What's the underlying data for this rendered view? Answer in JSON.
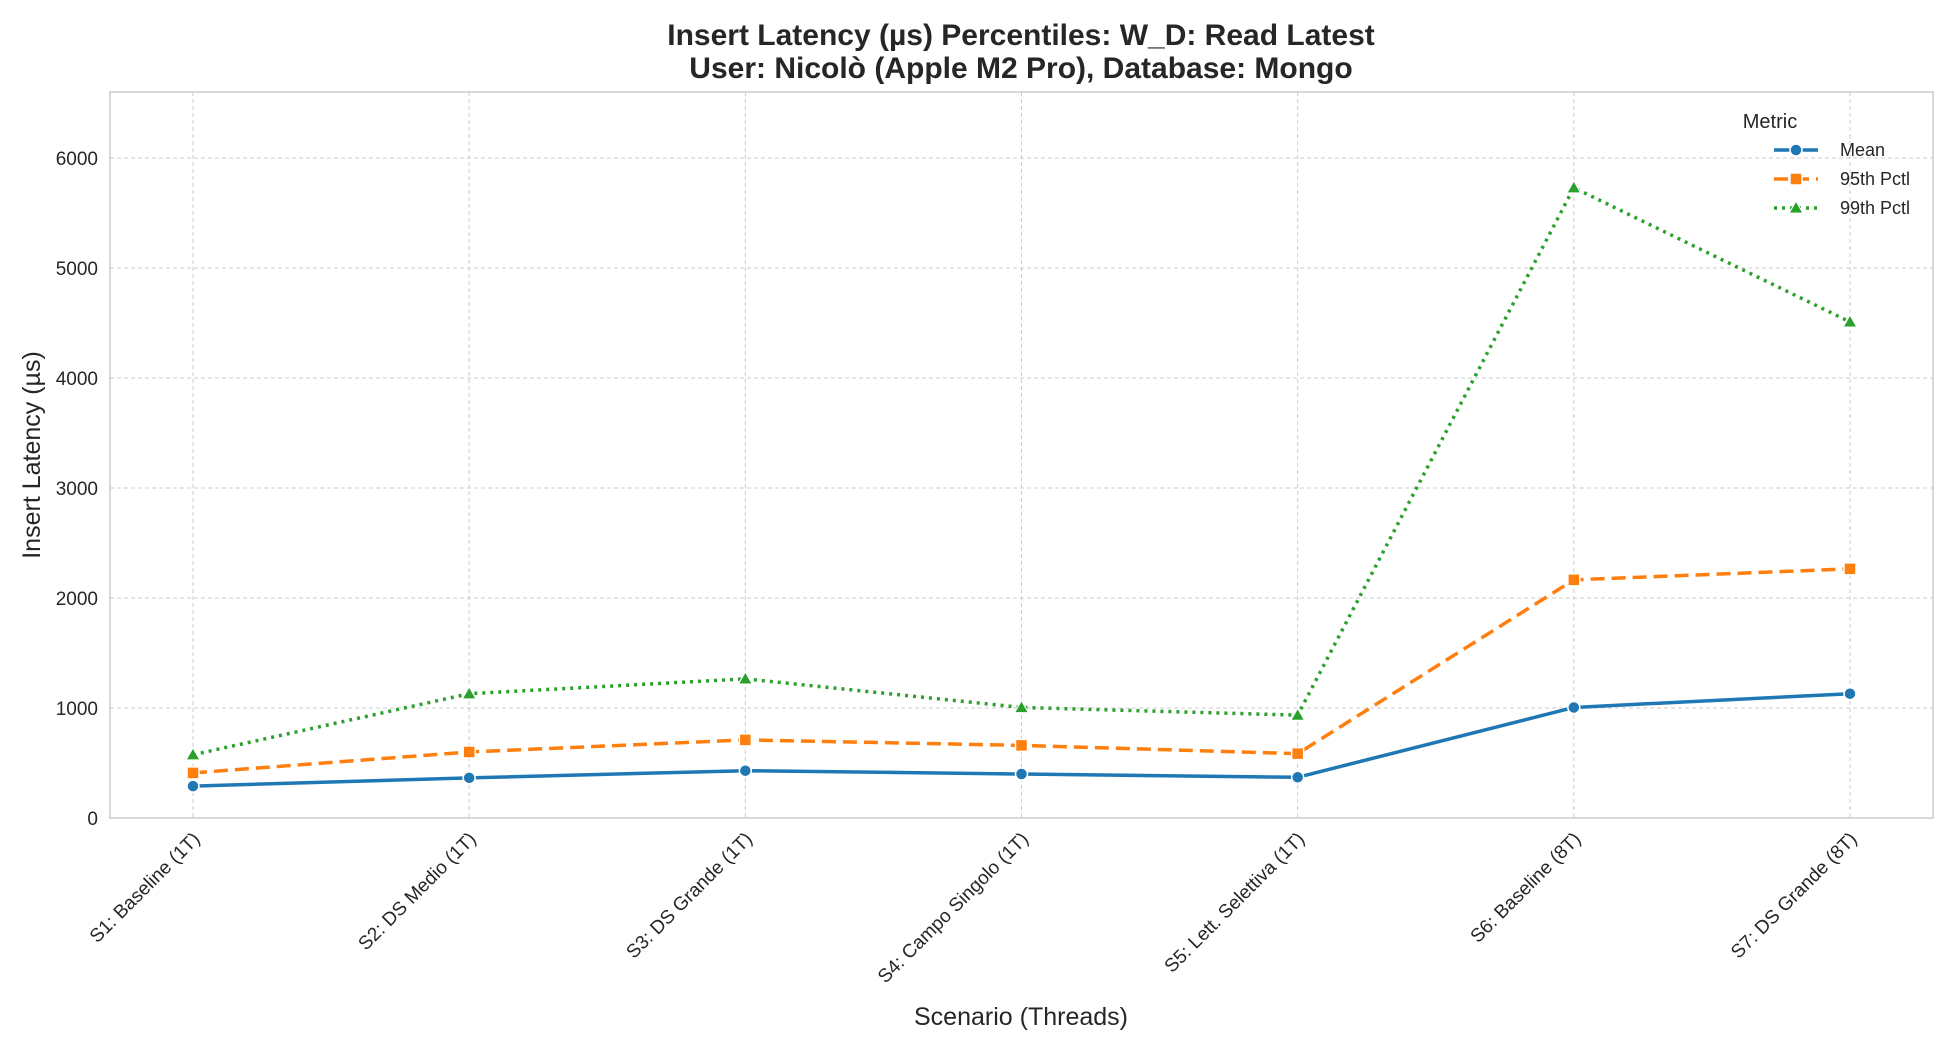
{
  "chart_data": {
    "type": "line",
    "title_line1": "Insert Latency (µs) Percentiles: W_D: Read Latest",
    "title_line2": "User: Nicolò (Apple M2 Pro), Database: Mongo",
    "xlabel": "Scenario (Threads)",
    "ylabel": "Insert Latency (µs)",
    "ylim": [
      0,
      6600
    ],
    "yticks": [
      0,
      1000,
      2000,
      3000,
      4000,
      5000,
      6000
    ],
    "grid": true,
    "legend_title": "Metric",
    "legend_position": "top-right",
    "categories": [
      "S1: Baseline (1T)",
      "S2: DS Medio (1T)",
      "S3: DS Grande (1T)",
      "S4: Campo Singolo (1T)",
      "S5: Lett. Selettiva (1T)",
      "S6: Baseline (8T)",
      "S7: DS Grande (8T)"
    ],
    "series": [
      {
        "name": "Mean",
        "color": "#1f77b4",
        "marker": "circle",
        "dash": "solid",
        "values": [
          290,
          365,
          430,
          400,
          370,
          1005,
          1130
        ]
      },
      {
        "name": "95th Pctl",
        "color": "#ff7f0e",
        "marker": "square",
        "dash": "dashed",
        "values": [
          410,
          600,
          710,
          660,
          585,
          2165,
          2265
        ]
      },
      {
        "name": "99th Pctl",
        "color": "#2ca02c",
        "marker": "triangle",
        "dash": "dotted",
        "values": [
          575,
          1130,
          1265,
          1005,
          935,
          5730,
          4510
        ]
      }
    ]
  }
}
